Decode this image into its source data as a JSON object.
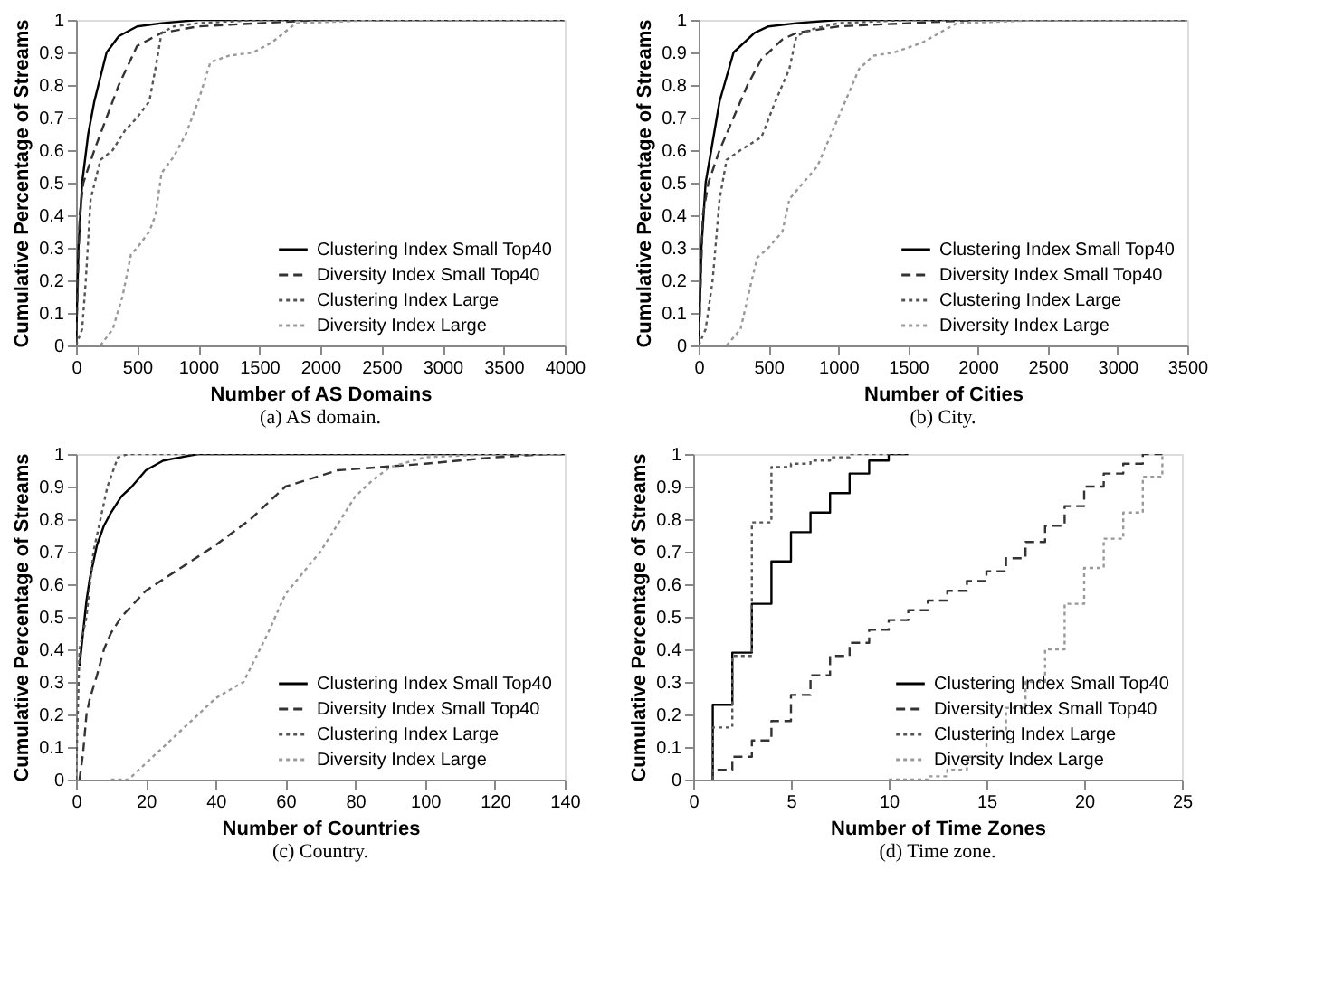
{
  "chart_data": [
    {
      "type": "line",
      "title": "(a) AS domain.",
      "xlabel": "Number of AS Domains",
      "ylabel": "Cumulative Percentage of Streams",
      "xlim": [
        0,
        4000
      ],
      "xticks": [
        0,
        500,
        1000,
        1500,
        2000,
        2500,
        3000,
        3500,
        4000
      ],
      "ylim": [
        0,
        1
      ],
      "yticks": [
        0,
        0.1,
        0.2,
        0.3,
        0.4,
        0.5,
        0.6,
        0.7,
        0.8,
        0.9,
        1
      ],
      "legend": "bottom right",
      "grid": false,
      "series": [
        {
          "name": "Clustering Index Small Top40",
          "color": "#000000",
          "line_style": "solid",
          "x": [
            0,
            20,
            50,
            100,
            150,
            250,
            350,
            500,
            700,
            1000,
            4000
          ],
          "values": [
            0,
            0.3,
            0.5,
            0.65,
            0.75,
            0.9,
            0.95,
            0.98,
            0.99,
            1,
            1
          ]
        },
        {
          "name": "Diversity Index Small Top40",
          "color": "#333333",
          "line_style": "dashed",
          "x": [
            0,
            30,
            60,
            150,
            250,
            350,
            500,
            600,
            700,
            1000,
            1500,
            2000,
            4000
          ],
          "values": [
            0,
            0.4,
            0.5,
            0.6,
            0.7,
            0.8,
            0.92,
            0.94,
            0.96,
            0.98,
            0.99,
            1,
            1
          ]
        },
        {
          "name": "Clustering Index Large",
          "color": "#555555",
          "line_style": "dotted",
          "x": [
            0,
            50,
            80,
            120,
            200,
            300,
            400,
            500,
            600,
            650,
            700,
            800,
            1000,
            1500,
            4000
          ],
          "values": [
            0,
            0.05,
            0.2,
            0.45,
            0.57,
            0.6,
            0.66,
            0.7,
            0.75,
            0.85,
            0.96,
            0.98,
            0.99,
            1,
            1
          ]
        },
        {
          "name": "Diversity Index Large",
          "color": "#999999",
          "line_style": "dotted",
          "x": [
            200,
            300,
            380,
            450,
            500,
            600,
            650,
            700,
            800,
            900,
            1000,
            1100,
            1250,
            1450,
            1600,
            1800,
            2500,
            4000
          ],
          "values": [
            0,
            0.05,
            0.15,
            0.28,
            0.3,
            0.35,
            0.4,
            0.53,
            0.58,
            0.65,
            0.75,
            0.87,
            0.89,
            0.9,
            0.93,
            0.99,
            1,
            1
          ]
        }
      ]
    },
    {
      "type": "line",
      "title": "(b) City.",
      "xlabel": "Number of Cities",
      "ylabel": "Cumulative Percentage of Streams",
      "xlim": [
        0,
        3500
      ],
      "xticks": [
        0,
        500,
        1000,
        1500,
        2000,
        2500,
        3000,
        3500
      ],
      "ylim": [
        0,
        1
      ],
      "yticks": [
        0,
        0.1,
        0.2,
        0.3,
        0.4,
        0.5,
        0.6,
        0.7,
        0.8,
        0.9,
        1
      ],
      "legend": "bottom right",
      "grid": false,
      "series": [
        {
          "name": "Clustering Index Small Top40",
          "color": "#000000",
          "line_style": "solid",
          "x": [
            0,
            20,
            50,
            150,
            250,
            400,
            500,
            700,
            1000,
            3500
          ],
          "values": [
            0,
            0.3,
            0.5,
            0.75,
            0.9,
            0.96,
            0.98,
            0.99,
            1,
            1
          ]
        },
        {
          "name": "Diversity Index Small Top40",
          "color": "#333333",
          "line_style": "dashed",
          "x": [
            0,
            30,
            70,
            150,
            250,
            350,
            450,
            600,
            700,
            1000,
            1500,
            2000,
            3500
          ],
          "values": [
            0,
            0.4,
            0.5,
            0.6,
            0.7,
            0.8,
            0.88,
            0.94,
            0.96,
            0.98,
            0.99,
            1,
            1
          ]
        },
        {
          "name": "Clustering Index Large",
          "color": "#555555",
          "line_style": "dotted",
          "x": [
            0,
            50,
            100,
            150,
            200,
            300,
            450,
            550,
            650,
            700,
            800,
            1000,
            1500,
            3500
          ],
          "values": [
            0,
            0.05,
            0.2,
            0.45,
            0.57,
            0.6,
            0.64,
            0.75,
            0.85,
            0.95,
            0.97,
            0.99,
            1,
            1
          ]
        },
        {
          "name": "Diversity Index Large",
          "color": "#999999",
          "line_style": "dotted",
          "x": [
            200,
            300,
            380,
            420,
            500,
            600,
            650,
            750,
            850,
            950,
            1050,
            1150,
            1250,
            1400,
            1600,
            1850,
            2500,
            3500
          ],
          "values": [
            0,
            0.05,
            0.2,
            0.27,
            0.3,
            0.35,
            0.45,
            0.5,
            0.55,
            0.65,
            0.75,
            0.85,
            0.89,
            0.9,
            0.93,
            0.99,
            1,
            1
          ]
        }
      ]
    },
    {
      "type": "line",
      "title": "(c) Country.",
      "xlabel": "Number of Countries",
      "ylabel": "Cumulative Percentage of Streams",
      "xlim": [
        0,
        140
      ],
      "xticks": [
        0,
        20,
        40,
        60,
        80,
        100,
        120,
        140
      ],
      "ylim": [
        0,
        1
      ],
      "yticks": [
        0,
        0.1,
        0.2,
        0.3,
        0.4,
        0.5,
        0.6,
        0.7,
        0.8,
        0.9,
        1
      ],
      "legend": "bottom right",
      "grid": false,
      "series": [
        {
          "name": "Clustering Index Small Top40",
          "color": "#000000",
          "line_style": "solid",
          "x": [
            1,
            2,
            3,
            4,
            5,
            6,
            7,
            8,
            10,
            13,
            16,
            20,
            25,
            30,
            35,
            140
          ],
          "values": [
            0.35,
            0.45,
            0.55,
            0.62,
            0.67,
            0.72,
            0.75,
            0.78,
            0.82,
            0.87,
            0.9,
            0.95,
            0.98,
            0.99,
            1,
            1
          ]
        },
        {
          "name": "Diversity Index Small Top40",
          "color": "#333333",
          "line_style": "dashed",
          "x": [
            1,
            2,
            3,
            4,
            6,
            8,
            10,
            13,
            20,
            30,
            40,
            50,
            60,
            75,
            100,
            120,
            135,
            140
          ],
          "values": [
            0,
            0.08,
            0.2,
            0.25,
            0.32,
            0.4,
            0.45,
            0.5,
            0.58,
            0.65,
            0.72,
            0.8,
            0.9,
            0.95,
            0.97,
            0.99,
            1,
            1
          ]
        },
        {
          "name": "Clustering Index Large",
          "color": "#555555",
          "line_style": "dotted",
          "x": [
            0,
            1,
            3,
            5,
            7,
            9,
            12,
            15,
            140
          ],
          "values": [
            0,
            0.4,
            0.5,
            0.7,
            0.8,
            0.9,
            0.99,
            1,
            1
          ]
        },
        {
          "name": "Diversity Index Large",
          "color": "#999999",
          "line_style": "dotted",
          "x": [
            10,
            15,
            20,
            30,
            40,
            48,
            55,
            60,
            70,
            80,
            85,
            90,
            100,
            120,
            140
          ],
          "values": [
            0,
            0,
            0.05,
            0.15,
            0.25,
            0.3,
            0.45,
            0.57,
            0.7,
            0.87,
            0.92,
            0.96,
            0.99,
            1,
            1
          ]
        }
      ]
    },
    {
      "type": "step",
      "title": "(d) Time zone.",
      "xlabel": "Number of Time Zones",
      "ylabel": "Cumulative Percentage of Streams",
      "xlim": [
        0,
        25
      ],
      "xticks": [
        0,
        5,
        10,
        15,
        20,
        25
      ],
      "ylim": [
        0,
        1
      ],
      "yticks": [
        0,
        0.1,
        0.2,
        0.3,
        0.4,
        0.5,
        0.6,
        0.7,
        0.8,
        0.9,
        1
      ],
      "legend": "bottom right",
      "grid": false,
      "series": [
        {
          "name": "Clustering Index Small Top40",
          "color": "#000000",
          "line_style": "solid",
          "x": [
            1,
            1,
            2,
            3,
            4,
            5,
            6,
            7,
            8,
            9,
            10,
            11
          ],
          "values": [
            0,
            0.23,
            0.39,
            0.54,
            0.67,
            0.76,
            0.82,
            0.88,
            0.94,
            0.98,
            1,
            1
          ]
        },
        {
          "name": "Diversity Index Small Top40",
          "color": "#333333",
          "line_style": "dashed",
          "x": [
            1,
            1,
            2,
            3,
            4,
            5,
            6,
            7,
            8,
            9,
            10,
            11,
            12,
            13,
            14,
            15,
            16,
            17,
            18,
            19,
            20,
            21,
            22,
            23,
            24
          ],
          "values": [
            0,
            0.03,
            0.07,
            0.12,
            0.18,
            0.26,
            0.32,
            0.38,
            0.42,
            0.46,
            0.49,
            0.52,
            0.55,
            0.58,
            0.61,
            0.64,
            0.68,
            0.73,
            0.78,
            0.84,
            0.9,
            0.94,
            0.97,
            1,
            1
          ]
        },
        {
          "name": "Clustering Index Large",
          "color": "#555555",
          "line_style": "dotted",
          "x": [
            1,
            1,
            2,
            3,
            4,
            5,
            6,
            7,
            8,
            11
          ],
          "values": [
            0,
            0.16,
            0.38,
            0.79,
            0.96,
            0.97,
            0.98,
            0.99,
            1,
            1
          ]
        },
        {
          "name": "Diversity Index Large",
          "color": "#999999",
          "line_style": "dotted",
          "x": [
            10,
            12,
            13,
            14,
            15,
            16,
            17,
            18,
            19,
            20,
            21,
            22,
            23,
            24
          ],
          "values": [
            0,
            0.01,
            0.03,
            0.07,
            0.15,
            0.22,
            0.3,
            0.4,
            0.54,
            0.65,
            0.74,
            0.82,
            0.93,
            1
          ]
        }
      ]
    }
  ]
}
